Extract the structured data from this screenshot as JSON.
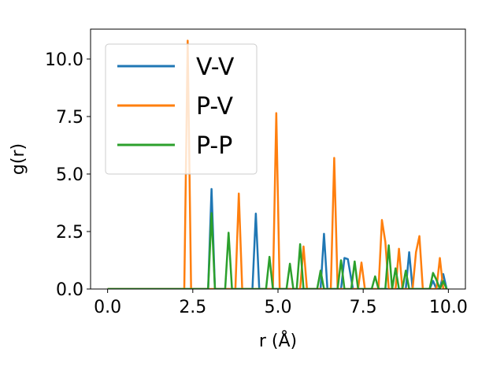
{
  "chart_data": {
    "type": "line",
    "title": "",
    "xlabel": "r (Å)",
    "ylabel": "g(r)",
    "xlim": [
      -0.5,
      10.5
    ],
    "ylim": [
      0,
      11.3
    ],
    "xticks": [
      0.0,
      2.5,
      5.0,
      7.5,
      10.0
    ],
    "xtick_labels": [
      "0.0",
      "2.5",
      "5.0",
      "7.5",
      "10.0"
    ],
    "yticks": [
      0.0,
      2.5,
      5.0,
      7.5,
      10.0
    ],
    "ytick_labels": [
      "0.0",
      "2.5",
      "5.0",
      "7.5",
      "10.0"
    ],
    "grid": false,
    "legend_position": "top-left",
    "series": [
      {
        "name": "V-V",
        "color": "#1f77b4",
        "x": [
          0.0,
          2.95,
          3.05,
          3.15,
          4.25,
          4.35,
          4.45,
          5.95,
          6.25,
          6.35,
          6.45,
          6.85,
          6.95,
          7.05,
          7.2,
          8.25,
          8.35,
          8.45,
          8.75,
          8.85,
          8.95,
          9.45,
          9.55,
          9.65,
          9.75,
          9.85,
          9.95
        ],
        "y": [
          0.0,
          0.0,
          4.35,
          0.0,
          0.0,
          3.28,
          0.0,
          0.0,
          0.0,
          2.4,
          0.0,
          0.0,
          1.35,
          1.3,
          0.0,
          0.0,
          0.0,
          0.0,
          0.0,
          1.6,
          0.0,
          0.0,
          0.35,
          0.0,
          0.0,
          0.65,
          0.0
        ]
      },
      {
        "name": "P-V",
        "color": "#ff7f0e",
        "x": [
          0.0,
          2.25,
          2.35,
          2.45,
          3.75,
          3.85,
          3.95,
          4.85,
          4.95,
          5.05,
          5.65,
          5.75,
          5.85,
          6.55,
          6.65,
          6.75,
          7.35,
          7.45,
          7.55,
          7.95,
          8.05,
          8.15,
          8.25,
          8.45,
          8.55,
          8.65,
          8.95,
          9.05,
          9.15,
          9.25,
          9.65,
          9.75,
          9.85,
          9.95
        ],
        "y": [
          0.0,
          0.0,
          10.8,
          0.0,
          0.0,
          4.15,
          0.0,
          0.0,
          7.65,
          0.0,
          0.0,
          1.85,
          0.0,
          0.0,
          5.7,
          0.0,
          0.0,
          1.15,
          0.0,
          0.0,
          3.0,
          2.05,
          0.0,
          0.0,
          1.75,
          0.0,
          0.0,
          1.6,
          2.3,
          0.0,
          0.0,
          1.35,
          0.0,
          0.0
        ]
      },
      {
        "name": "P-P",
        "color": "#2ca02c",
        "x": [
          0.0,
          2.95,
          3.05,
          3.15,
          3.45,
          3.55,
          3.65,
          4.65,
          4.75,
          4.85,
          5.25,
          5.35,
          5.45,
          5.55,
          5.65,
          5.75,
          6.15,
          6.25,
          6.35,
          6.75,
          6.85,
          6.95,
          7.15,
          7.25,
          7.35,
          7.75,
          7.85,
          7.95,
          8.15,
          8.25,
          8.35,
          8.45,
          8.55,
          8.65,
          8.75,
          8.85,
          8.95,
          9.45,
          9.55,
          9.65,
          9.75,
          9.85,
          9.95
        ],
        "y": [
          0.0,
          0.0,
          3.3,
          0.0,
          0.0,
          2.45,
          0.0,
          0.0,
          1.4,
          0.0,
          0.0,
          1.1,
          0.0,
          0.0,
          1.95,
          0.0,
          0.0,
          0.8,
          0.0,
          0.0,
          1.25,
          0.0,
          0.0,
          1.2,
          0.0,
          0.0,
          0.55,
          0.0,
          0.0,
          1.9,
          0.0,
          0.9,
          0.0,
          0.0,
          0.8,
          0.0,
          0.0,
          0.0,
          0.7,
          0.4,
          0.0,
          0.35,
          0.0
        ]
      }
    ]
  }
}
